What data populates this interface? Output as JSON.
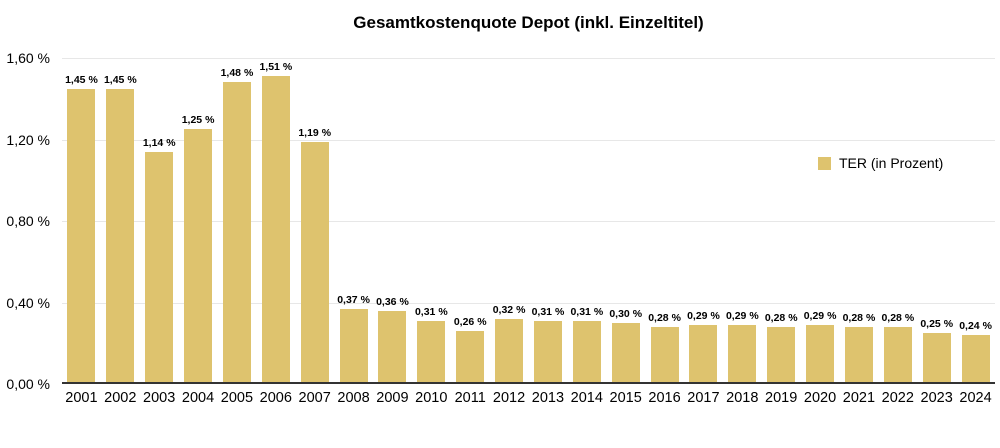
{
  "chart_data": {
    "type": "bar",
    "title": "Gesamtkostenquote Depot (inkl. Einzeltitel)",
    "categories": [
      "2001",
      "2002",
      "2003",
      "2004",
      "2005",
      "2006",
      "2007",
      "2008",
      "2009",
      "2010",
      "2011",
      "2012",
      "2013",
      "2014",
      "2015",
      "2016",
      "2017",
      "2018",
      "2019",
      "2020",
      "2021",
      "2022",
      "2023",
      "2024"
    ],
    "series": [
      {
        "name": "TER (in Prozent)",
        "values": [
          1.45,
          1.45,
          1.14,
          1.25,
          1.48,
          1.51,
          1.19,
          0.37,
          0.36,
          0.31,
          0.26,
          0.32,
          0.31,
          0.31,
          0.3,
          0.28,
          0.29,
          0.29,
          0.28,
          0.29,
          0.28,
          0.28,
          0.25,
          0.24
        ],
        "value_labels": [
          "1,45 %",
          "1,45 %",
          "1,14 %",
          "1,25 %",
          "1,48 %",
          "1,51 %",
          "1,19 %",
          "0,37 %",
          "0,36 %",
          "0,31 %",
          "0,26 %",
          "0,32 %",
          "0,31 %",
          "0,31 %",
          "0,30 %",
          "0,28 %",
          "0,29 %",
          "0,29 %",
          "0,28 %",
          "0,29 %",
          "0,28 %",
          "0,28 %",
          "0,25 %",
          "0,24 %"
        ]
      }
    ],
    "xlabel": "",
    "ylabel": "",
    "ylim": [
      0,
      1.6
    ],
    "yticks": {
      "values": [
        1.6,
        1.2,
        0.8,
        0.4,
        0.0
      ],
      "labels": [
        "1,60 %",
        "1,20 %",
        "0,80 %",
        "0,40 %",
        "0,00 %"
      ]
    },
    "grid": "horizontal",
    "legend_position": "right-middle",
    "data_labels": "on"
  },
  "legend": {
    "label": "TER (in Prozent)"
  },
  "colors": {
    "bar": "#dec36e",
    "gridline": "#e7e7e7",
    "axis": "#333333",
    "text": "#000000"
  }
}
